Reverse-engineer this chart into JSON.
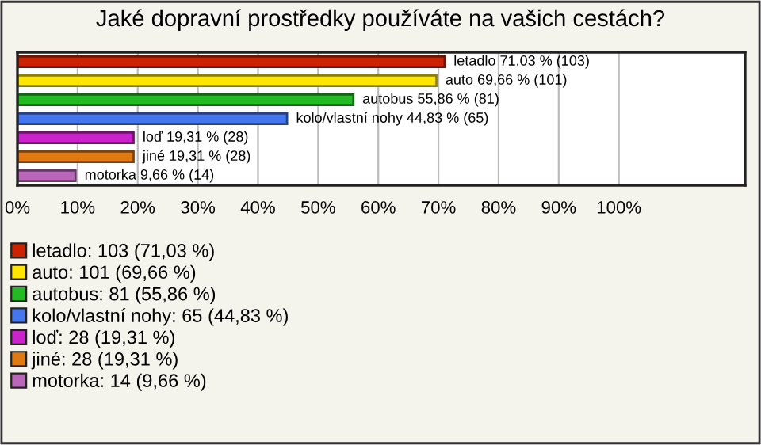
{
  "chart_data": {
    "type": "bar",
    "orientation": "horizontal",
    "title": "Jaké dopravní prostředky používáte na vašich cestách?",
    "categories": [
      null,
      null,
      null,
      null,
      null,
      null,
      null
    ],
    "series": [
      {
        "name": "letadlo: 103 (71,03 %)",
        "color": "#cc2200",
        "values": [
          71.03,
          null,
          null,
          null,
          null,
          null,
          null
        ],
        "value_labels": [
          "letadlo 71,03 % (103)",
          null,
          null,
          null,
          null,
          null,
          null
        ]
      },
      {
        "name": "auto: 101 (69,66 %)",
        "color": "#ffe600",
        "values": [
          null,
          69.66,
          null,
          null,
          null,
          null,
          null
        ],
        "value_labels": [
          null,
          "auto 69,66 % (101)",
          null,
          null,
          null,
          null,
          null
        ]
      },
      {
        "name": "autobus: 81 (55,86 %)",
        "color": "#22bb22",
        "values": [
          null,
          null,
          55.86,
          null,
          null,
          null,
          null
        ],
        "value_labels": [
          null,
          null,
          "autobus 55,86 % (81)",
          null,
          null,
          null,
          null
        ]
      },
      {
        "name": "kolo/vlastní nohy: 65 (44,83 %)",
        "color": "#4477ee",
        "values": [
          null,
          null,
          null,
          44.83,
          null,
          null,
          null
        ],
        "value_labels": [
          null,
          null,
          null,
          "kolo/vlastní nohy 44,83 % (65)",
          null,
          null,
          null
        ]
      },
      {
        "name": "loď: 28 (19,31 %)",
        "color": "#cc22cc",
        "values": [
          null,
          null,
          null,
          null,
          19.31,
          null,
          null
        ],
        "value_labels": [
          null,
          null,
          null,
          null,
          "loď 19,31 % (28)",
          null,
          null
        ]
      },
      {
        "name": "jiné: 28 (19,31 %)",
        "color": "#e07a10",
        "values": [
          null,
          null,
          null,
          null,
          null,
          19.31,
          null
        ],
        "value_labels": [
          null,
          null,
          null,
          null,
          null,
          "jiné 19,31 % (28)",
          null
        ]
      },
      {
        "name": "motorka: 14 (9,66 %)",
        "color": "#bb66bb",
        "values": [
          null,
          null,
          null,
          null,
          null,
          null,
          9.66
        ],
        "value_labels": [
          null,
          null,
          null,
          null,
          null,
          null,
          "motorka 9,66 % (14)"
        ]
      }
    ],
    "xlim": [
      0,
      121
    ],
    "xticks": [
      {
        "value": 0,
        "label": "0%"
      },
      {
        "value": 10,
        "label": "10%"
      },
      {
        "value": 20,
        "label": "20%"
      },
      {
        "value": 30,
        "label": "30%"
      },
      {
        "value": 40,
        "label": "40%"
      },
      {
        "value": 50,
        "label": "50%"
      },
      {
        "value": 60,
        "label": "60%"
      },
      {
        "value": 70,
        "label": "70%"
      },
      {
        "value": 80,
        "label": "80%"
      },
      {
        "value": 90,
        "label": "90%"
      },
      {
        "value": 100,
        "label": "100%"
      }
    ],
    "grid": "x",
    "legend": "bottom"
  }
}
